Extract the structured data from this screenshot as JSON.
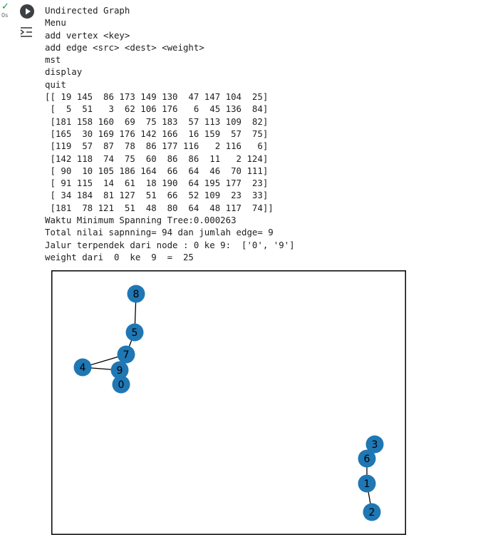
{
  "cell": {
    "status_icon": "check-icon",
    "exec_time": "0s",
    "run_icon": "play-icon",
    "output_icon": "output-toggle-icon"
  },
  "output_lines": [
    "Undirected Graph",
    "Menu",
    "add vertex <key>",
    "add edge <src> <dest> <weight>",
    "mst",
    "display",
    "quit",
    "[[ 19 145  86 173 149 130  47 147 104  25]",
    " [  5  51   3  62 106 176   6  45 136  84]",
    " [181 158 160  69  75 183  57 113 109  82]",
    " [165  30 169 176 142 166  16 159  57  75]",
    " [119  57  87  78  86 177 116   2 116   6]",
    " [142 118  74  75  60  86  86  11   2 124]",
    " [ 90  10 105 186 164  66  64  46  70 111]",
    " [ 91 115  14  61  18 190  64 195 177  23]",
    " [ 34 184  81 127  51  66  52 109  23  33]",
    " [181  78 121  51  48  80  64  48 117  74]]",
    "Waktu Minimum Spanning Tree:0.000263",
    "Total nilai sapnning= 94 dan jumlah edge= 9",
    "Jalur terpendek dari node : 0 ke 9:  ['0', '9']",
    "weight dari  0  ke  9  =  25"
  ],
  "graph": {
    "node_color": "#1f77b4",
    "edge_color": "#000000",
    "nodes": [
      {
        "label": "8"
      },
      {
        "label": "5"
      },
      {
        "label": "7"
      },
      {
        "label": "4"
      },
      {
        "label": "9"
      },
      {
        "label": "0"
      },
      {
        "label": "3"
      },
      {
        "label": "6"
      },
      {
        "label": "1"
      },
      {
        "label": "2"
      }
    ],
    "edges": [
      [
        "8",
        "5"
      ],
      [
        "5",
        "7"
      ],
      [
        "7",
        "4"
      ],
      [
        "7",
        "9"
      ],
      [
        "4",
        "9"
      ],
      [
        "9",
        "0"
      ],
      [
        "3",
        "6"
      ],
      [
        "6",
        "1"
      ],
      [
        "1",
        "2"
      ]
    ]
  }
}
